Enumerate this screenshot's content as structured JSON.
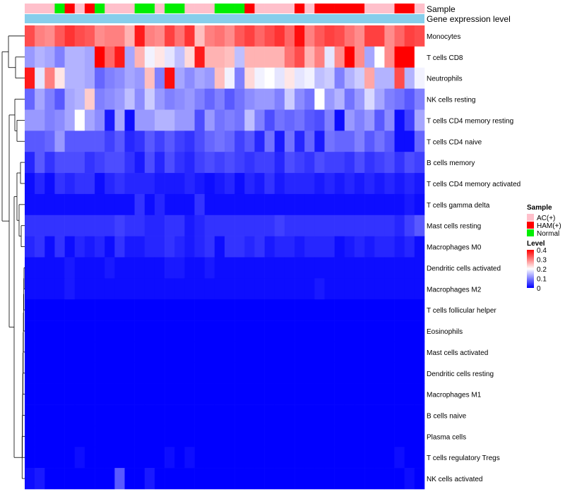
{
  "chart_data": {
    "type": "heatmap",
    "title": "",
    "annotation_tracks": [
      "Sample",
      "Gene expression level"
    ],
    "samples": [
      "AC(+)",
      "AC(+)",
      "AC(+)",
      "Normal",
      "HAM(+)",
      "AC(+)",
      "HAM(+)",
      "Normal",
      "AC(+)",
      "AC(+)",
      "AC(+)",
      "Normal",
      "Normal",
      "AC(+)",
      "Normal",
      "Normal",
      "AC(+)",
      "AC(+)",
      "AC(+)",
      "Normal",
      "Normal",
      "Normal",
      "HAM(+)",
      "AC(+)",
      "AC(+)",
      "AC(+)",
      "AC(+)",
      "HAM(+)",
      "AC(+)",
      "HAM(+)",
      "HAM(+)",
      "HAM(+)",
      "HAM(+)",
      "HAM(+)",
      "AC(+)",
      "AC(+)",
      "AC(+)",
      "HAM(+)",
      "HAM(+)",
      "AC(+)"
    ],
    "rows": [
      "Monocytes",
      "T cells CD8",
      "Neutrophils",
      "NK cells resting",
      "T cells CD4 memory resting",
      "T cells CD4 naive",
      "B cells memory",
      "T cells CD4 memory activated",
      "T cells gamma delta",
      "Mast cells resting",
      "Macrophages M0",
      "Dendritic cells activated",
      "Macrophages M2",
      "T cells follicular helper",
      "Eosinophils",
      "Mast cells activated",
      "Dendritic cells resting",
      "Macrophages M1",
      "B cells naive",
      "Plasma cells",
      "T cells regulatory  Tregs",
      "NK cells activated"
    ],
    "values": [
      [
        0.34,
        0.3,
        0.29,
        0.33,
        0.36,
        0.34,
        0.33,
        0.29,
        0.3,
        0.3,
        0.26,
        0.38,
        0.3,
        0.29,
        0.35,
        0.31,
        0.36,
        0.25,
        0.3,
        0.31,
        0.29,
        0.33,
        0.35,
        0.32,
        0.34,
        0.36,
        0.32,
        0.39,
        0.3,
        0.33,
        0.35,
        0.34,
        0.31,
        0.29,
        0.35,
        0.35,
        0.29,
        0.32,
        0.35,
        0.34
      ],
      [
        0.12,
        0.14,
        0.13,
        0.1,
        0.14,
        0.14,
        0.13,
        0.4,
        0.32,
        0.38,
        0.13,
        0.26,
        0.19,
        0.22,
        0.18,
        0.15,
        0.23,
        0.38,
        0.26,
        0.26,
        0.25,
        0.15,
        0.26,
        0.26,
        0.26,
        0.26,
        0.31,
        0.34,
        0.26,
        0.3,
        0.18,
        0.29,
        0.4,
        0.29,
        0.13,
        0.2,
        0.29,
        0.4,
        0.4,
        0.2
      ],
      [
        0.38,
        0.18,
        0.3,
        0.22,
        0.14,
        0.14,
        0.13,
        0.08,
        0.1,
        0.11,
        0.13,
        0.12,
        0.25,
        0.1,
        0.39,
        0.13,
        0.11,
        0.13,
        0.12,
        0.25,
        0.19,
        0.1,
        0.23,
        0.19,
        0.2,
        0.18,
        0.22,
        0.18,
        0.19,
        0.15,
        0.16,
        0.1,
        0.14,
        0.16,
        0.27,
        0.14,
        0.14,
        0.34,
        0.14,
        0.19
      ],
      [
        0.08,
        0.13,
        0.1,
        0.07,
        0.13,
        0.14,
        0.24,
        0.1,
        0.11,
        0.12,
        0.15,
        0.11,
        0.16,
        0.12,
        0.1,
        0.11,
        0.12,
        0.1,
        0.08,
        0.1,
        0.07,
        0.09,
        0.11,
        0.12,
        0.12,
        0.1,
        0.16,
        0.11,
        0.09,
        0.2,
        0.12,
        0.14,
        0.09,
        0.12,
        0.17,
        0.13,
        0.1,
        0.09,
        0.07,
        0.1
      ],
      [
        0.12,
        0.12,
        0.1,
        0.11,
        0.13,
        0.2,
        0.13,
        0.11,
        0.02,
        0.13,
        0.01,
        0.12,
        0.12,
        0.14,
        0.14,
        0.12,
        0.12,
        0.06,
        0.12,
        0.09,
        0.1,
        0.09,
        0.15,
        0.1,
        0.06,
        0.09,
        0.08,
        0.09,
        0.07,
        0.06,
        0.1,
        0.01,
        0.12,
        0.1,
        0.12,
        0.07,
        0.11,
        0.01,
        0.05,
        0.13
      ],
      [
        0.07,
        0.07,
        0.08,
        0.12,
        0.07,
        0.07,
        0.07,
        0.07,
        0.05,
        0.07,
        0.03,
        0.04,
        0.07,
        0.05,
        0.07,
        0.05,
        0.04,
        0.06,
        0.08,
        0.09,
        0.08,
        0.05,
        0.07,
        0.03,
        0.09,
        0.02,
        0.09,
        0.03,
        0.08,
        0.02,
        0.09,
        0.08,
        0.08,
        0.1,
        0.07,
        0.09,
        0.07,
        0.01,
        0.01,
        0.08
      ],
      [
        0.03,
        0.07,
        0.04,
        0.06,
        0.06,
        0.06,
        0.04,
        0.05,
        0.06,
        0.06,
        0.04,
        0.02,
        0.06,
        0.03,
        0.06,
        0.04,
        0.03,
        0.05,
        0.06,
        0.05,
        0.06,
        0.05,
        0.04,
        0.05,
        0.05,
        0.03,
        0.06,
        0.05,
        0.04,
        0.06,
        0.05,
        0.05,
        0.04,
        0.06,
        0.04,
        0.05,
        0.06,
        0.04,
        0.06,
        0.05
      ],
      [
        0.01,
        0.03,
        0.01,
        0.04,
        0.03,
        0.04,
        0.04,
        0.01,
        0.03,
        0.04,
        0.03,
        0.03,
        0.03,
        0.02,
        0.02,
        0.02,
        0.03,
        0.02,
        0.01,
        0.02,
        0.03,
        0.01,
        0.03,
        0.02,
        0.04,
        0.02,
        0.03,
        0.03,
        0.03,
        0.02,
        0.03,
        0.02,
        0.03,
        0.02,
        0.03,
        0.02,
        0.03,
        0.02,
        0.03,
        0.02
      ],
      [
        0.01,
        0.01,
        0.01,
        0.01,
        0.01,
        0.01,
        0.01,
        0.01,
        0.01,
        0.01,
        0.01,
        0.04,
        0.01,
        0.03,
        0.01,
        0.01,
        0.01,
        0.04,
        0.01,
        0.01,
        0.01,
        0.01,
        0.01,
        0.01,
        0.01,
        0.01,
        0.01,
        0.01,
        0.01,
        0.01,
        0.01,
        0.01,
        0.01,
        0.01,
        0.01,
        0.01,
        0.01,
        0.01,
        0.02,
        0.01
      ],
      [
        0.04,
        0.04,
        0.04,
        0.04,
        0.04,
        0.04,
        0.04,
        0.04,
        0.04,
        0.05,
        0.04,
        0.04,
        0.03,
        0.03,
        0.04,
        0.04,
        0.02,
        0.03,
        0.04,
        0.04,
        0.04,
        0.04,
        0.04,
        0.04,
        0.04,
        0.05,
        0.04,
        0.04,
        0.04,
        0.04,
        0.04,
        0.04,
        0.04,
        0.04,
        0.04,
        0.04,
        0.04,
        0.03,
        0.05,
        0.07
      ],
      [
        0.03,
        0.04,
        0.01,
        0.04,
        0.01,
        0.03,
        0.02,
        0.03,
        0.01,
        0.04,
        0.02,
        0.02,
        0.03,
        0.03,
        0.04,
        0.03,
        0.02,
        0.03,
        0.04,
        0.01,
        0.04,
        0.04,
        0.03,
        0.04,
        0.02,
        0.03,
        0.03,
        0.02,
        0.03,
        0.03,
        0.03,
        0.01,
        0.02,
        0.03,
        0.02,
        0.03,
        0.03,
        0.02,
        0.03,
        0.01
      ],
      [
        0.01,
        0.01,
        0.01,
        0.01,
        0.02,
        0.01,
        0.01,
        0.01,
        0.02,
        0.01,
        0.01,
        0.01,
        0.01,
        0.01,
        0.02,
        0.02,
        0.01,
        0.01,
        0.02,
        0.01,
        0.01,
        0.01,
        0.01,
        0.01,
        0.01,
        0.01,
        0.01,
        0.01,
        0.01,
        0.01,
        0.01,
        0.01,
        0.01,
        0.01,
        0.01,
        0.01,
        0.01,
        0.01,
        0.01,
        0.01
      ],
      [
        0.01,
        0.01,
        0.01,
        0.01,
        0.02,
        0.01,
        0.01,
        0.01,
        0.01,
        0.01,
        0.01,
        0.01,
        0.01,
        0.01,
        0.01,
        0.01,
        0.01,
        0.01,
        0.01,
        0.01,
        0.01,
        0.01,
        0.01,
        0.01,
        0.01,
        0.01,
        0.01,
        0.01,
        0.01,
        0.02,
        0.01,
        0.01,
        0.01,
        0.01,
        0.01,
        0.01,
        0.01,
        0.01,
        0.01,
        0.01
      ],
      [
        0.0,
        0.0,
        0.0,
        0.0,
        0.0,
        0.0,
        0.0,
        0.0,
        0.0,
        0.0,
        0.0,
        0.0,
        0.0,
        0.0,
        0.0,
        0.0,
        0.0,
        0.0,
        0.0,
        0.0,
        0.0,
        0.0,
        0.0,
        0.0,
        0.0,
        0.0,
        0.0,
        0.0,
        0.0,
        0.0,
        0.0,
        0.0,
        0.0,
        0.0,
        0.0,
        0.0,
        0.0,
        0.0,
        0.0,
        0.0
      ],
      [
        0.0,
        0.0,
        0.0,
        0.0,
        0.0,
        0.0,
        0.0,
        0.0,
        0.0,
        0.0,
        0.0,
        0.0,
        0.0,
        0.0,
        0.0,
        0.0,
        0.0,
        0.0,
        0.0,
        0.0,
        0.0,
        0.0,
        0.0,
        0.0,
        0.0,
        0.0,
        0.0,
        0.0,
        0.0,
        0.0,
        0.0,
        0.0,
        0.0,
        0.0,
        0.0,
        0.0,
        0.0,
        0.0,
        0.0,
        0.0
      ],
      [
        0.0,
        0.0,
        0.0,
        0.0,
        0.0,
        0.0,
        0.0,
        0.0,
        0.0,
        0.0,
        0.0,
        0.0,
        0.0,
        0.0,
        0.0,
        0.0,
        0.0,
        0.0,
        0.0,
        0.0,
        0.0,
        0.0,
        0.0,
        0.0,
        0.0,
        0.0,
        0.0,
        0.0,
        0.0,
        0.0,
        0.0,
        0.0,
        0.0,
        0.0,
        0.0,
        0.0,
        0.0,
        0.0,
        0.0,
        0.0
      ],
      [
        0.0,
        0.0,
        0.0,
        0.0,
        0.0,
        0.0,
        0.0,
        0.0,
        0.0,
        0.0,
        0.0,
        0.0,
        0.0,
        0.0,
        0.0,
        0.0,
        0.0,
        0.0,
        0.0,
        0.0,
        0.0,
        0.0,
        0.0,
        0.0,
        0.0,
        0.0,
        0.0,
        0.0,
        0.0,
        0.0,
        0.0,
        0.0,
        0.0,
        0.0,
        0.0,
        0.0,
        0.0,
        0.0,
        0.0,
        0.0
      ],
      [
        0.0,
        0.0,
        0.0,
        0.0,
        0.0,
        0.0,
        0.0,
        0.0,
        0.0,
        0.0,
        0.0,
        0.0,
        0.0,
        0.0,
        0.0,
        0.0,
        0.0,
        0.0,
        0.0,
        0.0,
        0.0,
        0.0,
        0.0,
        0.0,
        0.0,
        0.0,
        0.0,
        0.0,
        0.0,
        0.0,
        0.0,
        0.0,
        0.0,
        0.0,
        0.0,
        0.0,
        0.0,
        0.0,
        0.0,
        0.0
      ],
      [
        0.0,
        0.0,
        0.0,
        0.0,
        0.0,
        0.0,
        0.0,
        0.0,
        0.0,
        0.0,
        0.0,
        0.0,
        0.0,
        0.0,
        0.0,
        0.0,
        0.0,
        0.0,
        0.0,
        0.0,
        0.0,
        0.0,
        0.0,
        0.0,
        0.0,
        0.0,
        0.0,
        0.0,
        0.0,
        0.0,
        0.0,
        0.0,
        0.0,
        0.0,
        0.0,
        0.0,
        0.0,
        0.0,
        0.0,
        0.0
      ],
      [
        0.0,
        0.0,
        0.0,
        0.0,
        0.0,
        0.0,
        0.0,
        0.0,
        0.0,
        0.0,
        0.0,
        0.0,
        0.0,
        0.0,
        0.0,
        0.0,
        0.0,
        0.0,
        0.0,
        0.0,
        0.0,
        0.0,
        0.0,
        0.0,
        0.0,
        0.0,
        0.0,
        0.0,
        0.0,
        0.0,
        0.0,
        0.0,
        0.0,
        0.0,
        0.0,
        0.0,
        0.0,
        0.0,
        0.0,
        0.0
      ],
      [
        0.0,
        0.0,
        0.0,
        0.0,
        0.0,
        0.01,
        0.0,
        0.0,
        0.0,
        0.0,
        0.0,
        0.0,
        0.0,
        0.0,
        0.01,
        0.0,
        0.01,
        0.0,
        0.0,
        0.0,
        0.0,
        0.0,
        0.0,
        0.0,
        0.0,
        0.0,
        0.0,
        0.0,
        0.0,
        0.0,
        0.0,
        0.0,
        0.0,
        0.0,
        0.0,
        0.0,
        0.0,
        0.01,
        0.0,
        0.0
      ],
      [
        0.01,
        0.02,
        0.0,
        0.0,
        0.0,
        0.0,
        0.0,
        0.0,
        0.0,
        0.07,
        0.0,
        0.0,
        0.02,
        0.0,
        0.0,
        0.0,
        0.0,
        0.0,
        0.0,
        0.0,
        0.0,
        0.0,
        0.0,
        0.0,
        0.0,
        0.0,
        0.0,
        0.0,
        0.0,
        0.0,
        0.0,
        0.0,
        0.0,
        0.0,
        0.0,
        0.0,
        0.0,
        0.0,
        0.01,
        0.0
      ]
    ],
    "legend": {
      "sample_title": "Sample",
      "sample_entries": [
        {
          "label": "AC(+)",
          "color": "#FFC0CB"
        },
        {
          "label": "HAM(+)",
          "color": "#FF0000"
        },
        {
          "label": "Normal",
          "color": "#00EE00"
        }
      ],
      "level_title": "Level",
      "level_ticks": [
        "0.4",
        "0.3",
        "0.2",
        "0.1",
        "0"
      ],
      "level_range": [
        0,
        0.4
      ]
    },
    "gene_expression_color": "#87CEEB",
    "color_scale": {
      "low": "#0000FF",
      "mid": "#FFFFFF",
      "high": "#FF0000",
      "mid_value": 0.2
    }
  }
}
